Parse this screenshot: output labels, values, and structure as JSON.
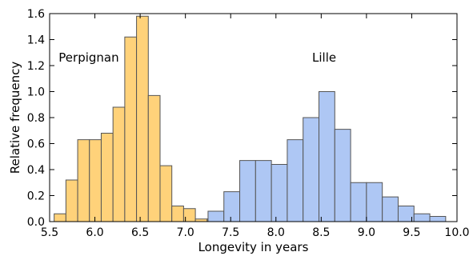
{
  "chart_data": {
    "type": "histogram",
    "xlabel": "Longevity in years",
    "ylabel": "Relative frequency",
    "xlim": [
      5.5,
      10.0
    ],
    "ylim": [
      0.0,
      1.6
    ],
    "x_ticks": [
      "5.5",
      "6.0",
      "6.5",
      "7.0",
      "7.5",
      "8.0",
      "8.5",
      "9.0",
      "9.5",
      "10.0"
    ],
    "y_ticks": [
      "0.0",
      "0.2",
      "0.4",
      "0.6",
      "0.8",
      "1.0",
      "1.2",
      "1.4",
      "1.6"
    ],
    "grid": false,
    "series": [
      {
        "name": "Perpignan",
        "color": "#ffd27a",
        "edge_color": "#555555",
        "bin_width": 0.13,
        "bin_starts": [
          5.55,
          5.68,
          5.81,
          5.94,
          6.07,
          6.2,
          6.33,
          6.46,
          6.59,
          6.72,
          6.85,
          6.98,
          7.11,
          7.24
        ],
        "values": [
          0.06,
          0.32,
          0.63,
          0.63,
          0.68,
          0.88,
          1.42,
          1.58,
          0.97,
          0.43,
          0.12,
          0.1,
          0.02,
          0.02
        ]
      },
      {
        "name": "Lille",
        "color": "#aec7f4",
        "edge_color": "#555555",
        "bin_width": 0.175,
        "bin_starts": [
          7.25,
          7.425,
          7.6,
          7.775,
          7.95,
          8.125,
          8.3,
          8.475,
          8.65,
          8.825,
          9.0,
          9.175,
          9.35,
          9.525,
          9.7
        ],
        "values": [
          0.08,
          0.23,
          0.47,
          0.47,
          0.44,
          0.63,
          0.8,
          1.0,
          0.71,
          0.3,
          0.3,
          0.19,
          0.12,
          0.06,
          0.04
        ]
      }
    ],
    "annotations": [
      {
        "text": "Perpignan",
        "x": 5.6,
        "y": 1.23
      },
      {
        "text": "Lille",
        "x": 8.4,
        "y": 1.23
      }
    ]
  }
}
